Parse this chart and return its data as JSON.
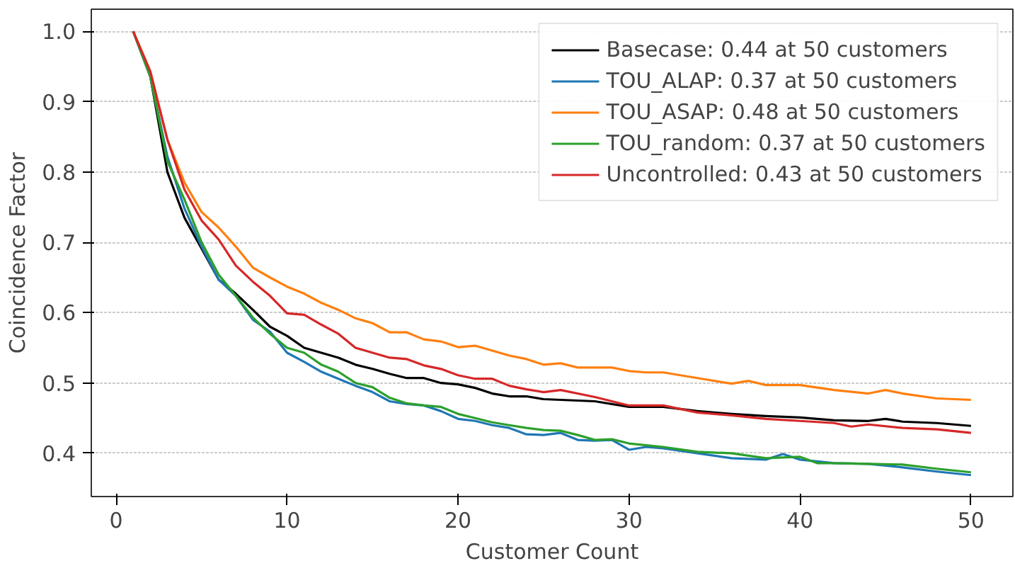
{
  "chart_data": {
    "type": "line",
    "xlabel": "Customer Count",
    "ylabel": "Coincidence Factor",
    "xlim": [
      -1.45,
      52.45
    ],
    "xticks": [
      0,
      10,
      20,
      30,
      40,
      50
    ],
    "ylim": [
      0.3385,
      1.0315
    ],
    "yticks": [
      {
        "value": 0.4,
        "label": "0.4"
      },
      {
        "value": 0.5,
        "label": "0.5"
      },
      {
        "value": 0.6,
        "label": "0.6"
      },
      {
        "value": 0.7,
        "label": "0.7"
      },
      {
        "value": 0.8,
        "label": "0.8"
      },
      {
        "value": 0.9,
        "label": "0.9"
      },
      {
        "value": 1.0,
        "label": "1.0"
      }
    ],
    "grid": "y",
    "legend": "top right",
    "line_style": "solid",
    "series": [
      {
        "name": "Basecase: 0.44 at 50 customers",
        "color": "#000000",
        "x": [
          1,
          2,
          3,
          4,
          5,
          6,
          7,
          8,
          9,
          10,
          11,
          12,
          13,
          14,
          15,
          16,
          17,
          18,
          19,
          20,
          21,
          22,
          23,
          24,
          25,
          26,
          28,
          30,
          32,
          34,
          36,
          38,
          40,
          42,
          44,
          45,
          46,
          48,
          50
        ],
        "values": [
          1.0,
          0.936,
          0.8,
          0.735,
          0.691,
          0.647,
          0.627,
          0.604,
          0.58,
          0.567,
          0.55,
          0.543,
          0.536,
          0.526,
          0.52,
          0.513,
          0.507,
          0.507,
          0.5,
          0.498,
          0.493,
          0.485,
          0.481,
          0.481,
          0.477,
          0.476,
          0.474,
          0.466,
          0.466,
          0.46,
          0.456,
          0.453,
          0.451,
          0.447,
          0.446,
          0.449,
          0.445,
          0.443,
          0.439
        ]
      },
      {
        "name": "TOU_ALAP: 0.37 at 50 customers",
        "color": "#1f77b4",
        "x": [
          1,
          2,
          3,
          4,
          5,
          6,
          7,
          8,
          9,
          10,
          11,
          12,
          13,
          14,
          15,
          16,
          17,
          18,
          19,
          20,
          21,
          22,
          23,
          24,
          25,
          26,
          27,
          28,
          29,
          30,
          31,
          32,
          34,
          36,
          38,
          39,
          40,
          42,
          44,
          46,
          48,
          50
        ],
        "values": [
          1.0,
          0.936,
          0.822,
          0.748,
          0.694,
          0.647,
          0.624,
          0.59,
          0.573,
          0.543,
          0.53,
          0.516,
          0.506,
          0.496,
          0.487,
          0.474,
          0.47,
          0.468,
          0.46,
          0.449,
          0.446,
          0.44,
          0.436,
          0.427,
          0.426,
          0.429,
          0.419,
          0.418,
          0.419,
          0.405,
          0.409,
          0.407,
          0.4,
          0.393,
          0.391,
          0.399,
          0.391,
          0.386,
          0.385,
          0.38,
          0.374,
          0.369
        ]
      },
      {
        "name": "TOU_ASAP: 0.48 at 50 customers",
        "color": "#ff7f0e",
        "x": [
          1,
          2,
          3,
          4,
          5,
          6,
          7,
          8,
          9,
          10,
          11,
          12,
          13,
          14,
          15,
          16,
          17,
          18,
          19,
          20,
          21,
          22,
          23,
          24,
          25,
          26,
          27,
          28,
          29,
          30,
          31,
          32,
          34,
          36,
          37,
          38,
          40,
          42,
          44,
          45,
          46,
          48,
          50
        ],
        "values": [
          1.0,
          0.943,
          0.846,
          0.785,
          0.743,
          0.721,
          0.694,
          0.664,
          0.65,
          0.637,
          0.627,
          0.614,
          0.604,
          0.592,
          0.585,
          0.572,
          0.572,
          0.562,
          0.559,
          0.551,
          0.553,
          0.546,
          0.539,
          0.534,
          0.526,
          0.528,
          0.522,
          0.522,
          0.522,
          0.517,
          0.515,
          0.515,
          0.507,
          0.499,
          0.503,
          0.497,
          0.497,
          0.49,
          0.485,
          0.49,
          0.485,
          0.478,
          0.476
        ]
      },
      {
        "name": "TOU_random: 0.37 at 50 customers",
        "color": "#2ca02c",
        "x": [
          1,
          2,
          3,
          4,
          5,
          6,
          7,
          8,
          9,
          10,
          11,
          12,
          13,
          14,
          15,
          16,
          17,
          18,
          19,
          20,
          21,
          22,
          23,
          24,
          25,
          26,
          27,
          28,
          29,
          30,
          32,
          34,
          36,
          38,
          40,
          41,
          42,
          44,
          46,
          48,
          50
        ],
        "values": [
          1.0,
          0.936,
          0.815,
          0.761,
          0.7,
          0.654,
          0.624,
          0.593,
          0.57,
          0.55,
          0.543,
          0.526,
          0.516,
          0.5,
          0.494,
          0.479,
          0.471,
          0.468,
          0.466,
          0.456,
          0.45,
          0.444,
          0.44,
          0.436,
          0.433,
          0.432,
          0.426,
          0.419,
          0.42,
          0.414,
          0.409,
          0.402,
          0.4,
          0.393,
          0.395,
          0.386,
          0.386,
          0.385,
          0.384,
          0.378,
          0.373
        ]
      },
      {
        "name": "Uncontrolled: 0.43 at 50 customers",
        "color": "#d62728",
        "x": [
          1,
          2,
          3,
          4,
          5,
          6,
          7,
          8,
          9,
          10,
          11,
          12,
          13,
          14,
          15,
          16,
          17,
          18,
          19,
          20,
          21,
          22,
          23,
          24,
          25,
          26,
          28,
          30,
          32,
          34,
          36,
          38,
          40,
          42,
          43,
          44,
          46,
          48,
          50
        ],
        "values": [
          1.0,
          0.943,
          0.846,
          0.775,
          0.731,
          0.704,
          0.667,
          0.644,
          0.624,
          0.599,
          0.597,
          0.583,
          0.57,
          0.55,
          0.543,
          0.536,
          0.534,
          0.525,
          0.52,
          0.511,
          0.506,
          0.506,
          0.496,
          0.491,
          0.487,
          0.49,
          0.48,
          0.468,
          0.468,
          0.458,
          0.454,
          0.449,
          0.446,
          0.443,
          0.438,
          0.441,
          0.436,
          0.434,
          0.429
        ]
      }
    ]
  }
}
